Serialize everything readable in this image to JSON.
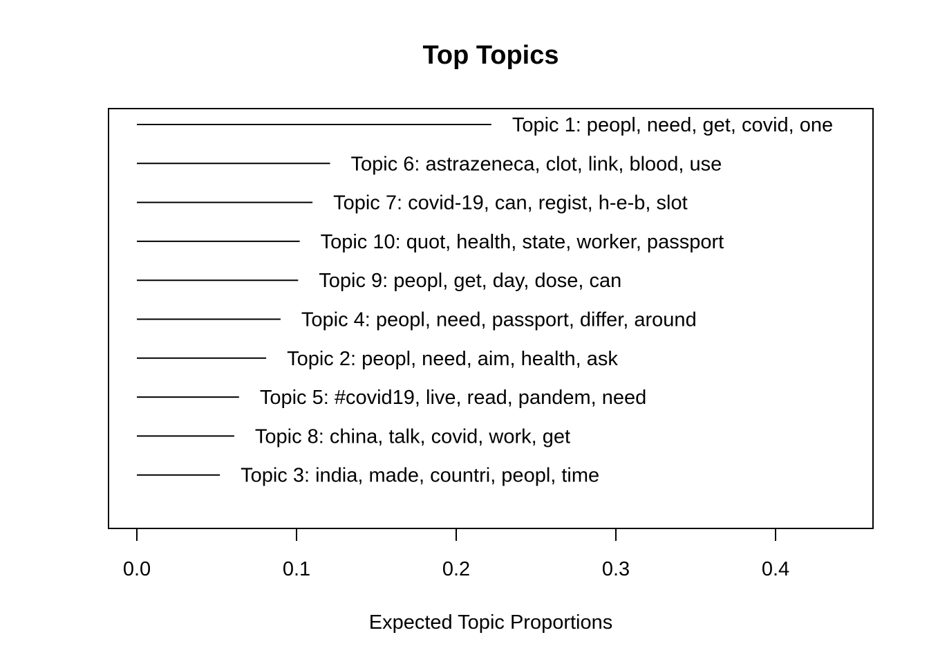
{
  "chart_data": {
    "type": "bar",
    "orientation": "horizontal",
    "style": "segments",
    "title": "Top Topics",
    "xlabel": "Expected Topic Proportions",
    "ylabel": "",
    "xlim": [
      0,
      0.46
    ],
    "x_ticks": [
      0.0,
      0.1,
      0.2,
      0.3,
      0.4
    ],
    "x_tick_labels": [
      "0.0",
      "0.1",
      "0.2",
      "0.3",
      "0.4"
    ],
    "grid": false,
    "categories": [
      "Topic 1: peopl, need, get, covid, one",
      "Topic 6: astrazeneca, clot, link, blood, use",
      "Topic 7: covid-19, can, regist, h-e-b, slot",
      "Topic 10: quot, health, state, worker, passport",
      "Topic 9: peopl, get, day, dose, can",
      "Topic 4: peopl, need, passport, differ, around",
      "Topic 2: peopl, need, aim, health, ask",
      "Topic 5: #covid19, live, read, pandem, need",
      "Topic 8: china, talk, covid, work, get",
      "Topic 3: india, made, countri, peopl, time"
    ],
    "values": [
      0.222,
      0.121,
      0.11,
      0.102,
      0.101,
      0.09,
      0.081,
      0.064,
      0.061,
      0.052
    ]
  }
}
